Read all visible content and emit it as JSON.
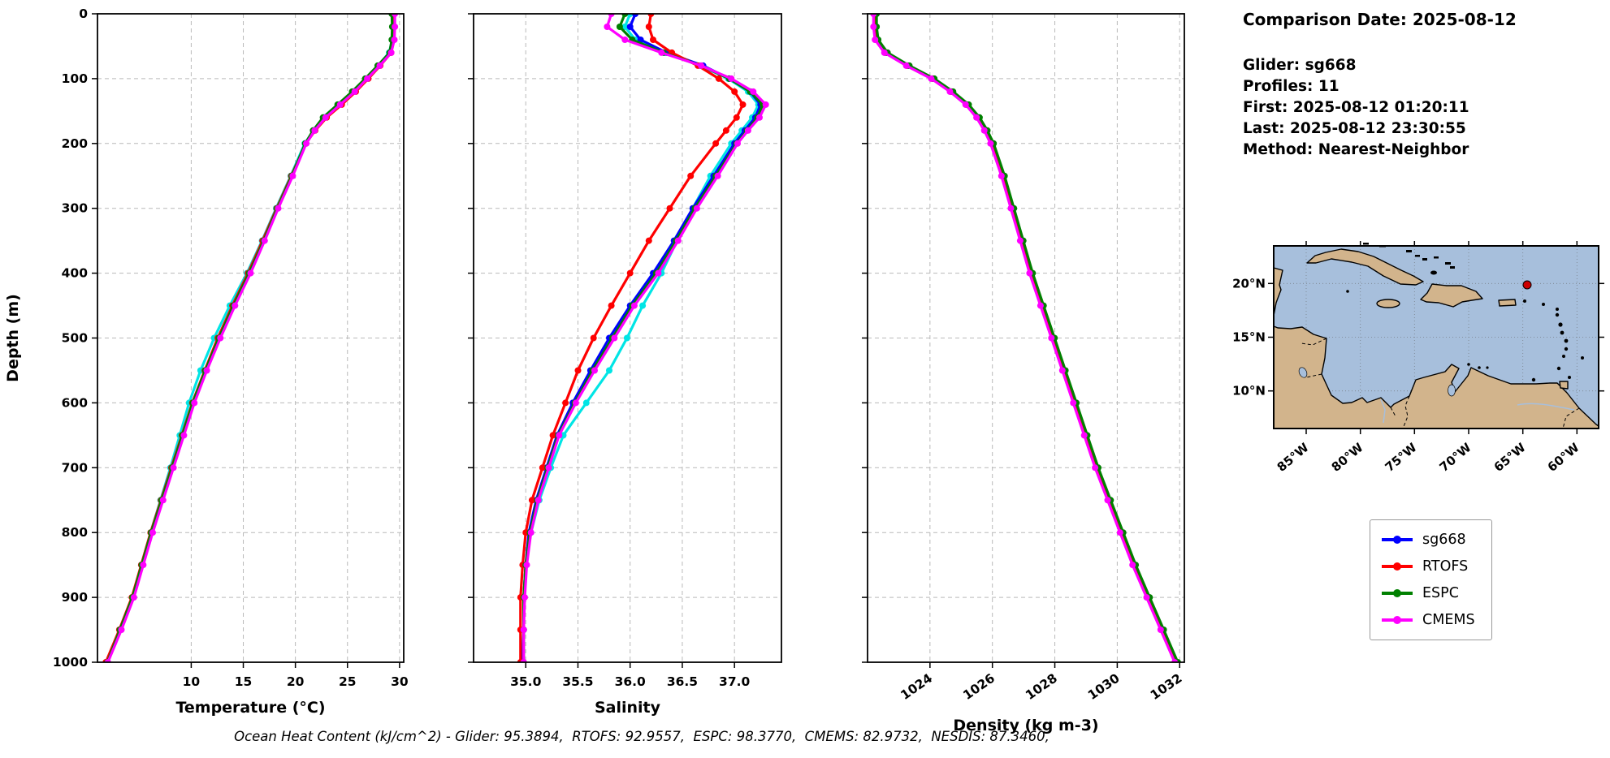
{
  "info": {
    "title": "Comparison Date: 2025-08-12",
    "lines": [
      "Glider: sg668",
      "Profiles: 11",
      "First: 2025-08-12 01:20:11",
      "Last: 2025-08-12 23:30:55",
      "Method: Nearest-Neighbor"
    ]
  },
  "legend": {
    "position": "lower-right-outside",
    "items": [
      {
        "label": "sg668",
        "color": "#0000ff"
      },
      {
        "label": "RTOFS",
        "color": "#ff0000"
      },
      {
        "label": "ESPC",
        "color": "#008000"
      },
      {
        "label": "CMEMS",
        "color": "#ff00ff"
      }
    ]
  },
  "caption": "Ocean Heat Content (kJ/cm^2) - Glider: 95.3894,  RTOFS: 92.9557,  ESPC: 98.3770,  CMEMS: 82.9732,  NESDIS: 87.3460,",
  "map": {
    "lat_labels": [
      "20°N",
      "15°N",
      "10°N"
    ],
    "lon_labels": [
      "85°W",
      "80°W",
      "75°W",
      "70°W",
      "65°W",
      "60°W"
    ],
    "ocean_color": "#a7bfdc",
    "land_color": "#d2b48c",
    "marker_color": "#cc0000"
  },
  "chart_data": [
    {
      "type": "line",
      "title": "",
      "xlabel": "Temperature (°C)",
      "ylabel": "Depth (m)",
      "xlim": [
        1.0,
        30.4
      ],
      "ylim": [
        0,
        1000
      ],
      "xticks": [
        10,
        15,
        20,
        25,
        30
      ],
      "xtick_labels": [
        "10",
        "15",
        "20",
        "25",
        "30"
      ],
      "yticks": [
        0,
        100,
        200,
        300,
        400,
        500,
        600,
        700,
        800,
        900,
        1000
      ],
      "show_ytick_labels": true,
      "xtick_rotation": 0,
      "xlabel_offset": 62,
      "grid": true,
      "depths": [
        0,
        20,
        40,
        60,
        80,
        100,
        120,
        140,
        160,
        180,
        200,
        250,
        300,
        350,
        400,
        450,
        500,
        550,
        600,
        650,
        700,
        750,
        800,
        850,
        900,
        950,
        1000
      ],
      "series": [
        {
          "name": "NESDIS",
          "color": "#00e5e5",
          "in_legend": false,
          "values": [
            29.35,
            29.38,
            29.3,
            29.0,
            27.95,
            26.75,
            25.5,
            24.1,
            22.7,
            21.75,
            20.9,
            19.55,
            18.15,
            16.8,
            15.35,
            13.7,
            12.2,
            10.9,
            9.8,
            8.9,
            8.0,
            7.05,
            6.1,
            5.2,
            4.35,
            3.15,
            1.9
          ]
        },
        {
          "name": "sg668",
          "color": "#0000ff",
          "in_legend": true,
          "values": [
            29.35,
            29.4,
            29.35,
            29.1,
            28.0,
            26.8,
            25.6,
            24.2,
            22.8,
            21.8,
            21.0,
            19.7,
            18.3,
            17.0,
            15.6,
            14.1,
            12.7,
            11.4,
            10.2,
            9.2,
            8.2,
            7.2,
            6.2,
            5.3,
            4.4,
            3.2,
            1.9
          ]
        },
        {
          "name": "RTOFS",
          "color": "#ff0000",
          "in_legend": true,
          "values": [
            29.45,
            29.5,
            29.45,
            29.2,
            28.15,
            27.0,
            25.8,
            24.45,
            23.0,
            21.9,
            21.0,
            19.6,
            18.2,
            16.85,
            15.45,
            13.95,
            12.55,
            11.3,
            10.1,
            9.1,
            8.1,
            7.1,
            6.1,
            5.2,
            4.3,
            3.1,
            1.8
          ]
        },
        {
          "name": "ESPC",
          "color": "#008000",
          "in_legend": true,
          "values": [
            29.25,
            29.3,
            29.25,
            29.05,
            27.9,
            26.7,
            25.45,
            24.05,
            22.65,
            21.7,
            20.95,
            19.65,
            18.25,
            16.95,
            15.55,
            14.05,
            12.65,
            11.35,
            10.15,
            9.15,
            8.15,
            7.15,
            6.15,
            5.25,
            4.35,
            3.15,
            1.95
          ]
        },
        {
          "name": "CMEMS",
          "color": "#ff00ff",
          "in_legend": true,
          "values": [
            29.55,
            29.55,
            29.5,
            29.2,
            28.1,
            26.9,
            25.7,
            24.3,
            22.9,
            21.85,
            21.05,
            19.75,
            18.35,
            17.05,
            15.7,
            14.2,
            12.8,
            11.5,
            10.3,
            9.3,
            8.3,
            7.3,
            6.3,
            5.4,
            4.5,
            3.3,
            2.0
          ]
        }
      ]
    },
    {
      "type": "line",
      "title": "",
      "xlabel": "Salinity",
      "ylabel": "",
      "xlim": [
        34.5,
        37.45
      ],
      "ylim": [
        0,
        1000
      ],
      "xticks": [
        35.0,
        35.5,
        36.0,
        36.5,
        37.0
      ],
      "xtick_labels": [
        "35.0",
        "35.5",
        "36.0",
        "36.5",
        "37.0"
      ],
      "yticks": [
        0,
        100,
        200,
        300,
        400,
        500,
        600,
        700,
        800,
        900,
        1000
      ],
      "show_ytick_labels": false,
      "xtick_rotation": 0,
      "xlabel_offset": 62,
      "grid": true,
      "depths": [
        0,
        20,
        40,
        60,
        80,
        100,
        120,
        140,
        160,
        180,
        200,
        250,
        300,
        350,
        400,
        450,
        500,
        550,
        600,
        650,
        700,
        750,
        800,
        850,
        900,
        950,
        1000
      ],
      "series": [
        {
          "name": "NESDIS",
          "color": "#00e5e5",
          "in_legend": false,
          "values": [
            36.0,
            35.95,
            36.05,
            36.33,
            36.67,
            36.94,
            37.13,
            37.23,
            37.17,
            37.07,
            36.97,
            36.77,
            36.6,
            36.45,
            36.3,
            36.12,
            35.97,
            35.8,
            35.58,
            35.36,
            35.24,
            35.13,
            35.05,
            35.0,
            34.98,
            34.98,
            34.97
          ]
        },
        {
          "name": "sg668",
          "color": "#0000ff",
          "in_legend": true,
          "values": [
            36.05,
            36.0,
            36.1,
            36.35,
            36.7,
            36.95,
            37.15,
            37.25,
            37.2,
            37.1,
            37.0,
            36.8,
            36.6,
            36.42,
            36.22,
            36.0,
            35.8,
            35.62,
            35.45,
            35.3,
            35.2,
            35.1,
            35.03,
            35.0,
            34.98,
            34.98,
            34.97
          ]
        },
        {
          "name": "RTOFS",
          "color": "#ff0000",
          "in_legend": true,
          "values": [
            36.2,
            36.18,
            36.22,
            36.4,
            36.65,
            36.85,
            37.0,
            37.08,
            37.02,
            36.92,
            36.82,
            36.58,
            36.38,
            36.18,
            36.0,
            35.82,
            35.65,
            35.5,
            35.38,
            35.26,
            35.16,
            35.06,
            35.0,
            34.97,
            34.95,
            34.95,
            34.95
          ]
        },
        {
          "name": "ESPC",
          "color": "#008000",
          "in_legend": true,
          "values": [
            35.95,
            35.9,
            36.02,
            36.32,
            36.68,
            36.95,
            37.15,
            37.27,
            37.22,
            37.12,
            37.02,
            36.82,
            36.62,
            36.44,
            36.25,
            36.02,
            35.83,
            35.64,
            35.47,
            35.31,
            35.21,
            35.11,
            35.04,
            35.0,
            34.98,
            34.98,
            34.98
          ]
        },
        {
          "name": "CMEMS",
          "color": "#ff00ff",
          "in_legend": true,
          "values": [
            35.82,
            35.78,
            35.95,
            36.3,
            36.68,
            36.97,
            37.18,
            37.3,
            37.24,
            37.13,
            37.03,
            36.84,
            36.64,
            36.46,
            36.27,
            36.04,
            35.85,
            35.66,
            35.48,
            35.32,
            35.22,
            35.12,
            35.05,
            35.01,
            34.99,
            34.98,
            34.98
          ]
        }
      ]
    },
    {
      "type": "line",
      "title": "",
      "xlabel": "Density (kg m-3)",
      "ylabel": "",
      "xlim": [
        1022.0,
        1032.15
      ],
      "ylim": [
        0,
        1000
      ],
      "xticks": [
        1024,
        1026,
        1028,
        1030,
        1032
      ],
      "xtick_labels": [
        "1024",
        "1026",
        "1028",
        "1030",
        "1032"
      ],
      "yticks": [
        0,
        100,
        200,
        300,
        400,
        500,
        600,
        700,
        800,
        900,
        1000
      ],
      "show_ytick_labels": false,
      "xtick_rotation": -35,
      "xlabel_offset": 84,
      "grid": true,
      "depths": [
        0,
        20,
        40,
        60,
        80,
        100,
        120,
        140,
        160,
        180,
        200,
        250,
        300,
        350,
        400,
        450,
        500,
        550,
        600,
        650,
        700,
        750,
        800,
        850,
        900,
        950,
        1000
      ],
      "series": [
        {
          "name": "sg668",
          "color": "#0000ff",
          "in_legend": true,
          "values": [
            1022.25,
            1022.25,
            1022.3,
            1022.6,
            1023.3,
            1024.1,
            1024.7,
            1025.2,
            1025.55,
            1025.8,
            1026.0,
            1026.35,
            1026.65,
            1026.95,
            1027.25,
            1027.6,
            1027.95,
            1028.3,
            1028.65,
            1029.0,
            1029.35,
            1029.75,
            1030.15,
            1030.55,
            1031.0,
            1031.45,
            1031.9
          ]
        },
        {
          "name": "RTOFS",
          "color": "#ff0000",
          "in_legend": true,
          "values": [
            1022.22,
            1022.22,
            1022.27,
            1022.56,
            1023.26,
            1024.06,
            1024.66,
            1025.16,
            1025.52,
            1025.77,
            1025.97,
            1026.32,
            1026.62,
            1026.92,
            1027.22,
            1027.57,
            1027.92,
            1028.27,
            1028.62,
            1028.97,
            1029.32,
            1029.72,
            1030.12,
            1030.52,
            1030.97,
            1031.42,
            1031.87
          ]
        },
        {
          "name": "ESPC",
          "color": "#008000",
          "in_legend": true,
          "values": [
            1022.29,
            1022.29,
            1022.34,
            1022.64,
            1023.34,
            1024.14,
            1024.74,
            1025.24,
            1025.59,
            1025.84,
            1026.04,
            1026.39,
            1026.69,
            1026.99,
            1027.29,
            1027.64,
            1027.99,
            1028.34,
            1028.69,
            1029.04,
            1029.39,
            1029.79,
            1030.19,
            1030.59,
            1031.04,
            1031.49,
            1031.94
          ]
        },
        {
          "name": "CMEMS",
          "color": "#ff00ff",
          "in_legend": true,
          "values": [
            1022.19,
            1022.19,
            1022.24,
            1022.54,
            1023.24,
            1024.04,
            1024.64,
            1025.14,
            1025.49,
            1025.74,
            1025.94,
            1026.29,
            1026.59,
            1026.89,
            1027.19,
            1027.54,
            1027.89,
            1028.24,
            1028.59,
            1028.94,
            1029.29,
            1029.69,
            1030.09,
            1030.49,
            1030.94,
            1031.39,
            1031.84
          ]
        }
      ]
    }
  ]
}
